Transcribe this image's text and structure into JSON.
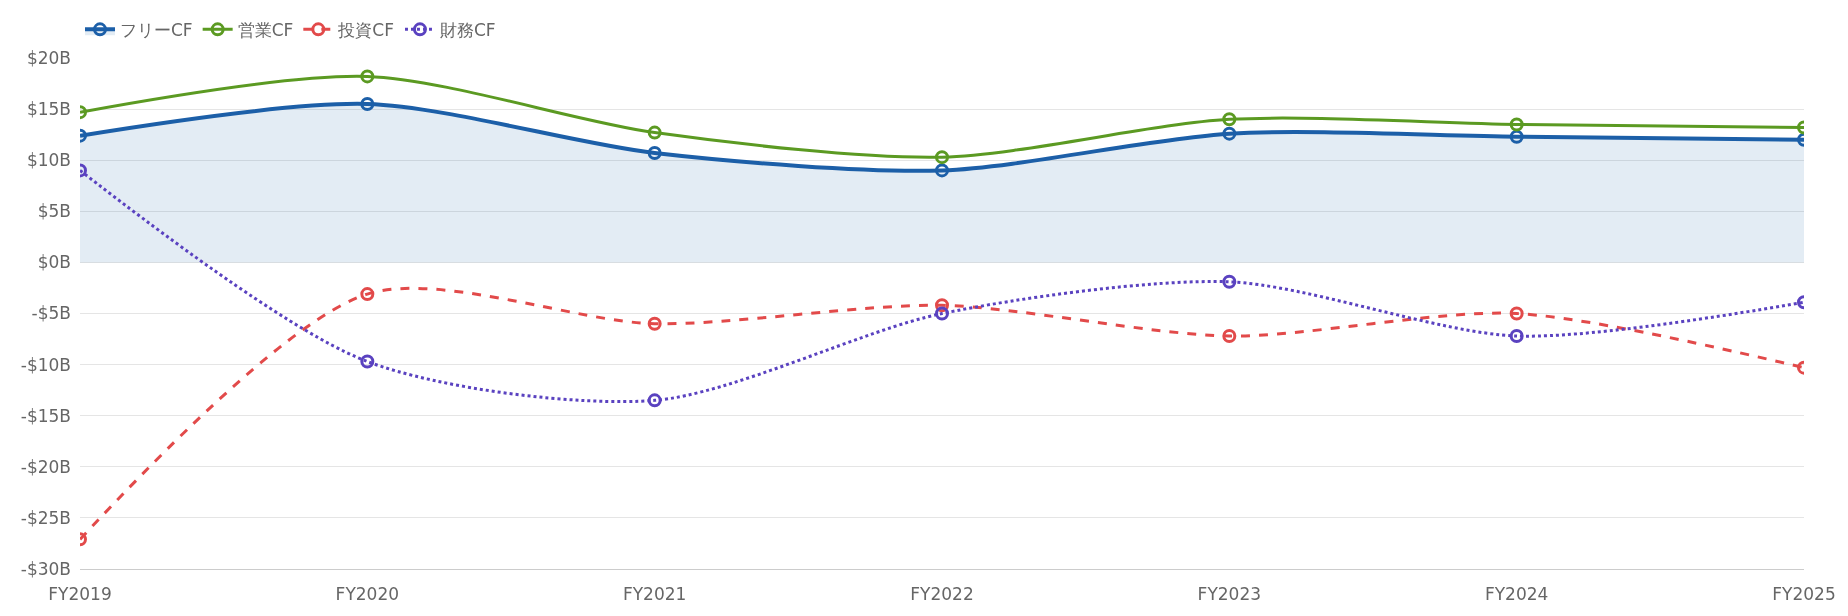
{
  "chart_data": {
    "type": "line",
    "categories": [
      "FY2019",
      "FY2020",
      "FY2021",
      "FY2022",
      "FY2023",
      "FY2024",
      "FY2025"
    ],
    "series": [
      {
        "name": "フリーCF",
        "type": "area",
        "color": "#1c5fa8",
        "line_style": "solid",
        "values": [
          12.4,
          15.5,
          10.7,
          9.0,
          12.6,
          12.3,
          12.0
        ]
      },
      {
        "name": "営業CF",
        "color": "#5b9a22",
        "line_style": "solid",
        "values": [
          14.7,
          18.2,
          12.7,
          10.3,
          14.0,
          13.5,
          13.2
        ]
      },
      {
        "name": "投資CF",
        "color": "#e24a4a",
        "line_style": "dashed",
        "values": [
          -27.1,
          -3.1,
          -6.0,
          -4.2,
          -7.2,
          -5.0,
          -10.3
        ]
      },
      {
        "name": "財務CF",
        "color": "#5a42c0",
        "line_style": "dotted",
        "values": [
          9.0,
          -9.7,
          -13.5,
          -5.0,
          -1.9,
          -7.2,
          -3.9
        ]
      }
    ],
    "ylim": [
      -30,
      20
    ],
    "yticks": [
      {
        "value": -30,
        "label": "-$30B"
      },
      {
        "value": -25,
        "label": "-$25B"
      },
      {
        "value": -20,
        "label": "-$20B"
      },
      {
        "value": -15,
        "label": "-$15B"
      },
      {
        "value": -10,
        "label": "-$10B"
      },
      {
        "value": -5,
        "label": "-$5B"
      },
      {
        "value": 0,
        "label": "$0B"
      },
      {
        "value": 5,
        "label": "$5B"
      },
      {
        "value": 10,
        "label": "$10B"
      },
      {
        "value": 15,
        "label": "$15B"
      },
      {
        "value": 20,
        "label": "$20B"
      }
    ],
    "grid": "y",
    "legend": "top left",
    "marker": "circle"
  }
}
